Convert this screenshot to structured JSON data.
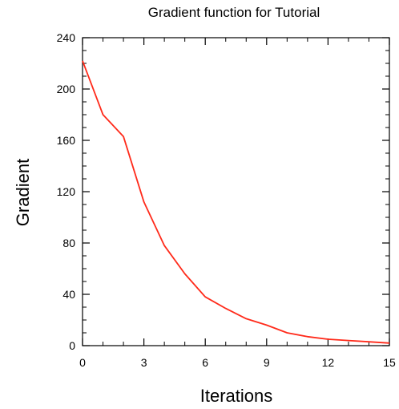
{
  "chart_data": {
    "type": "line",
    "title": "Gradient function for Tutorial",
    "xlabel": "Iterations",
    "ylabel": "Gradient",
    "xlim": [
      0,
      15
    ],
    "ylim": [
      0,
      240
    ],
    "x_ticks": [
      0,
      3,
      6,
      9,
      12,
      15
    ],
    "y_ticks": [
      0,
      40,
      80,
      120,
      160,
      200,
      240
    ],
    "grid": false,
    "series": [
      {
        "color": "#ff2a1a",
        "x": [
          0,
          1,
          2,
          3,
          4,
          5,
          6,
          7,
          8,
          9,
          10,
          11,
          12,
          13,
          14,
          15
        ],
        "y": [
          222,
          180,
          163,
          112,
          78,
          56,
          38,
          29,
          21,
          16,
          10,
          7,
          5,
          4,
          3,
          2
        ]
      }
    ]
  }
}
